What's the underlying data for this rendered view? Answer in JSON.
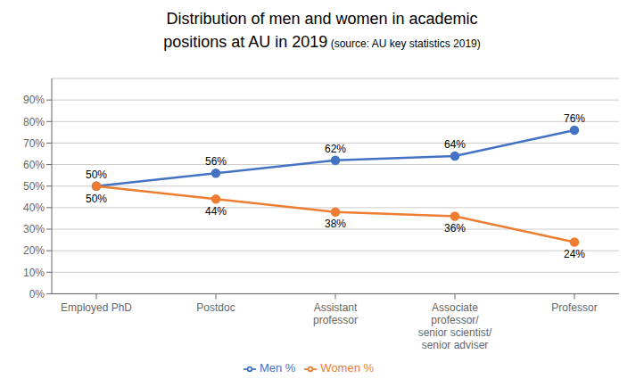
{
  "chart_data": {
    "type": "line",
    "title": "Distribution of men and women in academic\npositions at AU in 2019",
    "subtitle": "(source: AU key statistics 2019)",
    "categories": [
      "Employed PhD",
      "Postdoc",
      "Assistant\nprofessor",
      "Associate\nprofessor/\nsenior scientist/\nsenior adviser",
      "Professor"
    ],
    "series": [
      {
        "name": "Men %",
        "color": "#4472C4",
        "values": [
          50,
          56,
          62,
          64,
          76
        ],
        "value_labels": [
          "50%",
          "56%",
          "62%",
          "64%",
          "76%"
        ]
      },
      {
        "name": "Women %",
        "color": "#ED7D31",
        "values": [
          50,
          44,
          38,
          36,
          24
        ],
        "value_labels": [
          "50%",
          "44%",
          "38%",
          "36%",
          "24%"
        ]
      }
    ],
    "ylim": [
      0,
      100
    ],
    "yticks": [
      {
        "value": 0,
        "label": "0%"
      },
      {
        "value": 10,
        "label": "10%"
      },
      {
        "value": 20,
        "label": "20%"
      },
      {
        "value": 30,
        "label": "30%"
      },
      {
        "value": 40,
        "label": "40%"
      },
      {
        "value": 50,
        "label": "50%"
      },
      {
        "value": 60,
        "label": "60%"
      },
      {
        "value": 70,
        "label": "70%"
      },
      {
        "value": 80,
        "label": "80%"
      },
      {
        "value": 90,
        "label": "90%"
      }
    ],
    "grid": true,
    "legend": "bottom",
    "marker": "circle",
    "data_labels": true
  }
}
